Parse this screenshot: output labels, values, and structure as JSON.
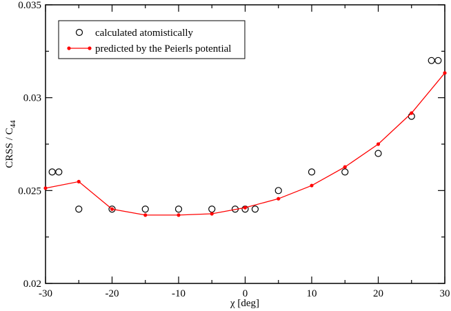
{
  "chart_data": {
    "type": "line",
    "xlabel": "χ [deg]",
    "ylabel": "CRSS / C",
    "ylabel_sub": "44",
    "xlim": [
      -30,
      30
    ],
    "ylim": [
      0.02,
      0.035
    ],
    "xticks": [
      -30,
      -20,
      -10,
      0,
      10,
      20,
      30
    ],
    "yticks": [
      0.02,
      0.025,
      0.03,
      0.035
    ],
    "xminorticks": [
      -25,
      -15,
      -5,
      5,
      15,
      25
    ],
    "yminorticks": [
      0.0225,
      0.0275,
      0.0325
    ],
    "legend": "top-left",
    "series": [
      {
        "name": "calculated atomistically",
        "color": "#000000",
        "mode": "markers",
        "x": [
          -29,
          -28,
          -25,
          -20,
          -15,
          -10,
          -5,
          -1.5,
          0,
          1.5,
          5,
          10,
          15,
          20,
          25,
          28,
          29
        ],
        "values": [
          0.026,
          0.026,
          0.024,
          0.024,
          0.024,
          0.024,
          0.024,
          0.024,
          0.024,
          0.024,
          0.025,
          0.026,
          0.026,
          0.027,
          0.029,
          0.032,
          0.032
        ]
      },
      {
        "name": "predicted by the Peierls potential",
        "color": "#ff0000",
        "mode": "lines+markers",
        "x": [
          -30,
          -25,
          -20,
          -15,
          -10,
          -5,
          0,
          5,
          10,
          15,
          20,
          25,
          30
        ],
        "values": [
          0.02513,
          0.02548,
          0.024,
          0.02368,
          0.02368,
          0.02375,
          0.02408,
          0.02456,
          0.02527,
          0.02627,
          0.0275,
          0.02917,
          0.03133
        ]
      }
    ]
  }
}
